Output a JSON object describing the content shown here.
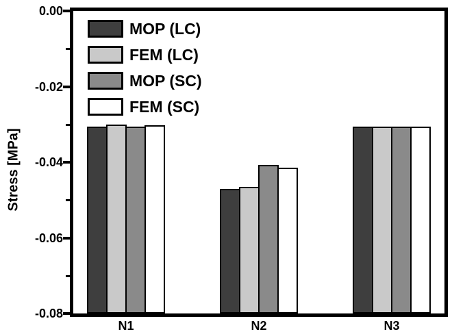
{
  "chart_data": {
    "type": "bar",
    "title": "",
    "xlabel": "",
    "ylabel": "Stress [MPa]",
    "ylim": [
      0,
      -0.08
    ],
    "categories": [
      "N1",
      "N2",
      "N3"
    ],
    "series": [
      {
        "name": "MOP (LC)",
        "color": "#3e3e3e",
        "values": [
          -0.0305,
          -0.047,
          -0.0305
        ]
      },
      {
        "name": "FEM (LC)",
        "color": "#c9c9c9",
        "values": [
          -0.0301,
          -0.0465,
          -0.0305
        ]
      },
      {
        "name": "MOP (SC)",
        "color": "#8a8a8a",
        "values": [
          -0.0306,
          -0.0408,
          -0.0305
        ]
      },
      {
        "name": "FEM (SC)",
        "color": "#ffffff",
        "values": [
          -0.0303,
          -0.0415,
          -0.0305
        ]
      }
    ],
    "yticks_major": [
      0,
      -0.02,
      -0.04,
      -0.06,
      -0.08
    ],
    "ytick_labels": [
      "0.00",
      "-0.02",
      "-0.04",
      "-0.06",
      "-0.08"
    ],
    "yticks_minor": [
      -0.01,
      -0.03,
      -0.05,
      -0.07
    ],
    "legend_position": "top-left-inside",
    "grid": false,
    "bar_border_color": "#000000",
    "axis_color": "#000000",
    "background_color": "#ffffff"
  }
}
